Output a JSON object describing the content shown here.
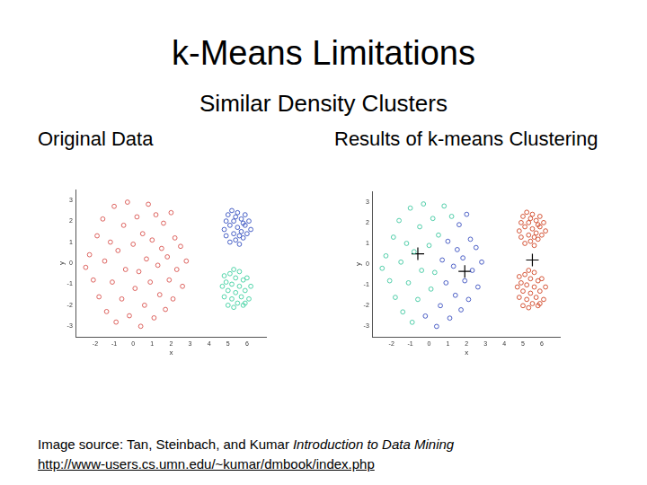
{
  "title": "k-Means Limitations",
  "subtitle": "Similar Density Clusters",
  "source": {
    "text": "Image source: Tan, Steinbach, and Kumar",
    "book": "Introduction to Data Mining",
    "url": "http://www-users.cs.umn.edu/~kumar/dmbook/index.php"
  },
  "chart_data": [
    {
      "type": "scatter",
      "title": "Original Data",
      "x_label": "x",
      "y_label": "y",
      "xlim": [
        -3,
        7
      ],
      "ylim": [
        -3.5,
        3.5
      ],
      "xticks": [
        -2,
        -1,
        0,
        1,
        2,
        3,
        4,
        5,
        6
      ],
      "yticks": [
        -3,
        -2,
        -1,
        0,
        1,
        2,
        3
      ],
      "grid": false,
      "series": [
        {
          "color": "#d9534f",
          "marker": "circle",
          "x": [
            -2.3,
            -2.1,
            -1.9,
            -1.8,
            -1.6,
            -1.5,
            -1.4,
            -1.2,
            -1.1,
            -1.0,
            -0.9,
            -0.8,
            -0.6,
            -0.5,
            -0.4,
            -0.3,
            0.0,
            0.1,
            0.2,
            0.3,
            0.5,
            0.8,
            1.2,
            -2.5,
            -0.2,
            0.4,
            0.6,
            0.7,
            0.9,
            1.0,
            1.1,
            1.3,
            1.4,
            1.5,
            1.6,
            1.7,
            1.8,
            1.9,
            2.0,
            2.1,
            2.2,
            2.3,
            2.5,
            2.6,
            2.8
          ],
          "values": [
            0.4,
            -0.8,
            1.3,
            -1.6,
            2.1,
            0.1,
            -2.3,
            1.0,
            -0.9,
            2.7,
            -2.8,
            0.6,
            -1.7,
            1.8,
            -0.3,
            2.9,
            0.9,
            -1.2,
            2.2,
            -0.4,
            1.4,
            2.8,
            2.3,
            -0.2,
            -2.5,
            -3.0,
            -2.0,
            0.2,
            -0.9,
            1.1,
            -2.6,
            -0.1,
            -1.5,
            0.7,
            1.9,
            -2.2,
            0.3,
            -0.8,
            2.4,
            -1.7,
            1.2,
            -0.3,
            0.8,
            -1.1,
            0.1
          ]
        },
        {
          "color": "#3550c0",
          "marker": "circle",
          "x": [
            4.8,
            4.9,
            4.9,
            5.0,
            5.1,
            5.1,
            5.2,
            5.3,
            5.3,
            5.4,
            5.5,
            5.5,
            5.6,
            5.7,
            5.7,
            5.8,
            5.9,
            5.9,
            6.0,
            6.1,
            6.2,
            5.4,
            5.6,
            5.8
          ],
          "values": [
            1.6,
            2.0,
            1.3,
            2.3,
            1.0,
            1.8,
            2.5,
            1.4,
            2.0,
            1.1,
            1.7,
            2.4,
            0.9,
            1.5,
            2.1,
            1.2,
            2.3,
            1.8,
            1.4,
            2.0,
            1.6,
            2.2,
            1.3,
            1.9
          ]
        },
        {
          "color": "#3fd0a0",
          "marker": "circle",
          "x": [
            4.7,
            4.8,
            4.8,
            4.9,
            5.0,
            5.0,
            5.1,
            5.2,
            5.2,
            5.3,
            5.4,
            5.4,
            5.5,
            5.6,
            5.6,
            5.7,
            5.8,
            5.8,
            5.9,
            6.0,
            6.1,
            6.2,
            5.3,
            5.9
          ],
          "values": [
            -1.1,
            -0.6,
            -1.6,
            -0.9,
            -2.0,
            -1.3,
            -0.5,
            -1.7,
            -1.0,
            -2.1,
            -0.7,
            -1.4,
            -1.9,
            -1.1,
            -0.4,
            -1.6,
            -0.8,
            -2.0,
            -1.3,
            -0.7,
            -1.7,
            -1.1,
            -0.3,
            -1.9
          ]
        }
      ]
    },
    {
      "type": "scatter",
      "title": "Results of k-means Clustering",
      "x_label": "x",
      "y_label": "y",
      "xlim": [
        -3,
        7
      ],
      "ylim": [
        -3.5,
        3.5
      ],
      "xticks": [
        -2,
        -1,
        0,
        1,
        2,
        3,
        4,
        5,
        6
      ],
      "yticks": [
        -3,
        -2,
        -1,
        0,
        1,
        2,
        3
      ],
      "grid": false,
      "series": [
        {
          "color": "#3fc8a0",
          "marker": "circle",
          "x": [
            -2.3,
            -2.1,
            -1.9,
            -1.8,
            -1.6,
            -1.5,
            -1.4,
            -1.2,
            -1.1,
            -1.0,
            -0.9,
            -0.8,
            -0.6,
            -0.5,
            -0.4,
            -0.3,
            0.0,
            0.1,
            0.2,
            0.3,
            0.5,
            0.8,
            1.2,
            -2.5
          ],
          "values": [
            0.4,
            -0.8,
            1.3,
            -1.6,
            2.1,
            0.1,
            -2.3,
            1.0,
            -0.9,
            2.7,
            -2.8,
            0.6,
            -1.7,
            1.8,
            -0.3,
            2.9,
            0.9,
            -1.2,
            2.2,
            -0.4,
            1.4,
            2.8,
            2.3,
            -0.2
          ]
        },
        {
          "color": "#3a4fc0",
          "marker": "circle",
          "x": [
            -0.2,
            0.4,
            0.6,
            0.7,
            0.9,
            1.0,
            1.1,
            1.3,
            1.4,
            1.5,
            1.6,
            1.7,
            1.8,
            1.9,
            2.0,
            2.1,
            2.2,
            2.3,
            2.5,
            2.6,
            2.8
          ],
          "values": [
            -2.5,
            -3.0,
            -2.0,
            0.2,
            -0.9,
            1.1,
            -2.6,
            -0.1,
            -1.5,
            0.7,
            1.9,
            -2.2,
            0.3,
            -0.8,
            2.4,
            -1.7,
            1.2,
            -0.3,
            0.8,
            -1.1,
            0.1
          ]
        },
        {
          "color": "#d04424",
          "marker": "circle",
          "x": [
            4.8,
            4.9,
            4.9,
            5.0,
            5.1,
            5.1,
            5.2,
            5.3,
            5.3,
            5.4,
            5.5,
            5.5,
            5.6,
            5.7,
            5.7,
            5.8,
            5.9,
            5.9,
            6.0,
            6.1,
            6.2,
            5.4,
            5.6,
            5.8,
            4.7,
            4.8,
            4.8,
            4.9,
            5.0,
            5.0,
            5.1,
            5.2,
            5.2,
            5.3,
            5.4,
            5.4,
            5.5,
            5.6,
            5.6,
            5.7,
            5.8,
            5.8,
            5.9,
            6.0,
            6.1,
            6.2,
            5.3,
            5.9
          ],
          "values": [
            1.6,
            2.0,
            1.3,
            2.3,
            1.0,
            1.8,
            2.5,
            1.4,
            2.0,
            1.1,
            1.7,
            2.4,
            0.9,
            1.5,
            2.1,
            1.2,
            2.3,
            1.8,
            1.4,
            2.0,
            1.6,
            2.2,
            1.3,
            1.9,
            -1.1,
            -0.6,
            -1.6,
            -0.9,
            -2.0,
            -1.3,
            -0.5,
            -1.7,
            -1.0,
            -2.1,
            -0.7,
            -1.4,
            -1.9,
            -1.1,
            -0.4,
            -1.6,
            -0.8,
            -2.0,
            -1.3,
            -0.7,
            -1.7,
            -1.1,
            -0.3,
            -1.9
          ]
        },
        {
          "color": "#000000",
          "marker": "cross",
          "x": [
            -0.6,
            1.9,
            5.5
          ],
          "values": [
            0.5,
            -0.35,
            0.2
          ]
        }
      ]
    }
  ]
}
